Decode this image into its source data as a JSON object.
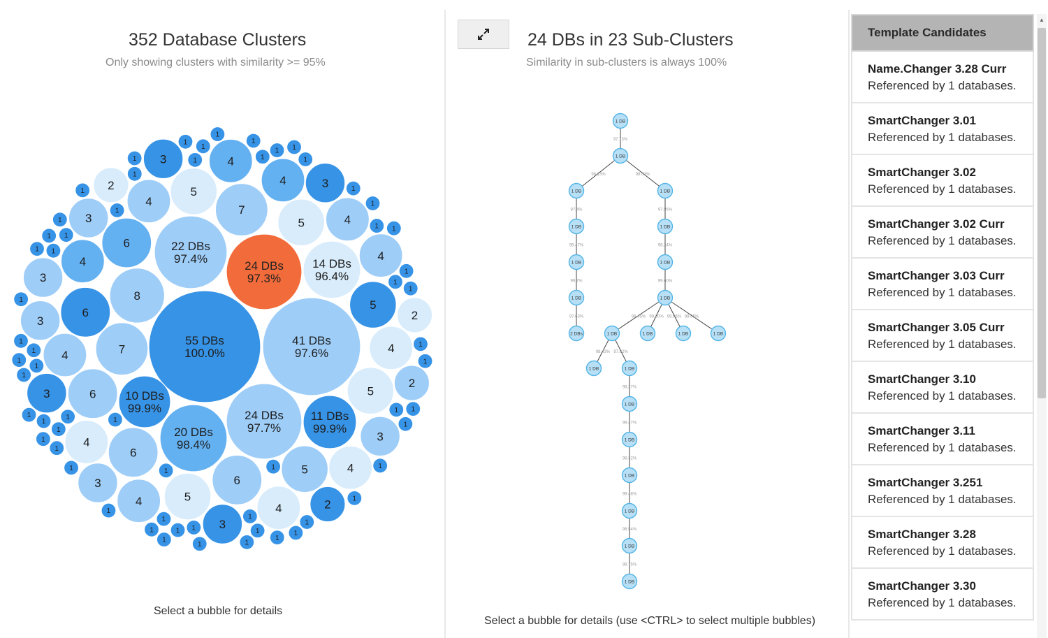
{
  "left_panel": {
    "title": "352 Database Clusters",
    "subtitle": "Only showing clusters with similarity >= 95%",
    "footer": "Select a bubble for details"
  },
  "mid_panel": {
    "expand_icon": "expand-arrows-icon",
    "title": "24 DBs in 23 Sub-Clusters",
    "subtitle": "Similarity in sub-clusters is always 100%",
    "footer": "Select a bubble for details (use <CTRL> to select multiple bubbles)"
  },
  "templates": {
    "header": "Template Candidates",
    "items": [
      {
        "name": "Name.Changer 3.28 Curr",
        "ref": "Referenced by 1 databases."
      },
      {
        "name": "SmartChanger 3.01",
        "ref": "Referenced by 1 databases."
      },
      {
        "name": "SmartChanger 3.02",
        "ref": "Referenced by 1 databases."
      },
      {
        "name": "SmartChanger 3.02 Curr",
        "ref": "Referenced by 1 databases."
      },
      {
        "name": "SmartChanger 3.03 Curr",
        "ref": "Referenced by 1 databases."
      },
      {
        "name": "SmartChanger 3.05 Curr",
        "ref": "Referenced by 1 databases."
      },
      {
        "name": "SmartChanger 3.10",
        "ref": "Referenced by 1 databases."
      },
      {
        "name": "SmartChanger 3.11",
        "ref": "Referenced by 1 databases."
      },
      {
        "name": "SmartChanger 3.251",
        "ref": "Referenced by 1 databases."
      },
      {
        "name": "SmartChanger 3.28",
        "ref": "Referenced by 1 databases."
      },
      {
        "name": "SmartChanger 3.30",
        "ref": "Referenced by 1 databases."
      }
    ]
  },
  "colors": {
    "selected": "#f26b3a",
    "dark": "#3793e6",
    "medium": "#64b1f2",
    "light": "#9ecdf8",
    "pale": "#d8ecfc",
    "node_fill": "#b7e0f7",
    "node_stroke": "#52b4e6"
  },
  "major_clusters": [
    {
      "label": "55 DBs",
      "pct": "100.0%",
      "shade": "dark"
    },
    {
      "label": "41 DBs",
      "pct": "97.6%",
      "shade": "light"
    },
    {
      "label": "24 DBs",
      "pct": "97.3%",
      "shade": "selected"
    },
    {
      "label": "24 DBs",
      "pct": "97.7%",
      "shade": "light"
    },
    {
      "label": "22 DBs",
      "pct": "97.4%",
      "shade": "light"
    },
    {
      "label": "20 DBs",
      "pct": "98.4%",
      "shade": "medium"
    },
    {
      "label": "14 DBs",
      "pct": "96.4%",
      "shade": "pale"
    },
    {
      "label": "11 DBs",
      "pct": "99.9%",
      "shade": "dark"
    },
    {
      "label": "10 DBs",
      "pct": "99.9%",
      "shade": "dark"
    }
  ],
  "small_clusters": [
    {
      "count": "8",
      "shade": "light"
    },
    {
      "count": "7",
      "shade": "light"
    },
    {
      "count": "7",
      "shade": "light"
    },
    {
      "count": "6",
      "shade": "medium"
    },
    {
      "count": "6",
      "shade": "light"
    },
    {
      "count": "6",
      "shade": "light"
    },
    {
      "count": "6",
      "shade": "dark"
    },
    {
      "count": "6",
      "shade": "light"
    },
    {
      "count": "5",
      "shade": "pale"
    },
    {
      "count": "5",
      "shade": "light"
    },
    {
      "count": "5",
      "shade": "pale"
    },
    {
      "count": "5",
      "shade": "dark"
    },
    {
      "count": "5",
      "shade": "pale"
    },
    {
      "count": "5",
      "shade": "pale"
    },
    {
      "count": "4",
      "shade": "light"
    },
    {
      "count": "4",
      "shade": "light"
    },
    {
      "count": "4",
      "shade": "medium"
    },
    {
      "count": "4",
      "shade": "pale"
    },
    {
      "count": "4",
      "shade": "pale"
    },
    {
      "count": "4",
      "shade": "medium"
    },
    {
      "count": "4",
      "shade": "light"
    },
    {
      "count": "4",
      "shade": "pale"
    },
    {
      "count": "4",
      "shade": "light"
    },
    {
      "count": "4",
      "shade": "medium"
    },
    {
      "count": "4",
      "shade": "light"
    },
    {
      "count": "4",
      "shade": "pale"
    },
    {
      "count": "3",
      "shade": "light"
    },
    {
      "count": "3",
      "shade": "dark"
    },
    {
      "count": "3",
      "shade": "light"
    },
    {
      "count": "3",
      "shade": "dark"
    },
    {
      "count": "3",
      "shade": "light"
    },
    {
      "count": "3",
      "shade": "light"
    },
    {
      "count": "3",
      "shade": "dark"
    },
    {
      "count": "3",
      "shade": "light"
    },
    {
      "count": "3",
      "shade": "dark"
    },
    {
      "count": "3",
      "shade": "dark"
    },
    {
      "count": "3",
      "shade": "pale"
    },
    {
      "count": "3",
      "shade": "light"
    },
    {
      "count": "3",
      "shade": "light"
    },
    {
      "count": "3",
      "shade": "dark"
    },
    {
      "count": "3",
      "shade": "dark"
    },
    {
      "count": "3",
      "shade": "light"
    },
    {
      "count": "3",
      "shade": "pale"
    },
    {
      "count": "2",
      "shade": "pale"
    },
    {
      "count": "2",
      "shade": "pale"
    },
    {
      "count": "2",
      "shade": "light"
    },
    {
      "count": "2",
      "shade": "dark"
    },
    {
      "count": "2",
      "shade": "dark"
    },
    {
      "count": "2",
      "shade": "dark"
    },
    {
      "count": "2",
      "shade": "light"
    },
    {
      "count": "2",
      "shade": "dark"
    },
    {
      "count": "2",
      "shade": "dark"
    },
    {
      "count": "2",
      "shade": "light"
    },
    {
      "count": "2",
      "shade": "pale"
    },
    {
      "count": "2",
      "shade": "dark"
    },
    {
      "count": "2",
      "shade": "dark"
    },
    {
      "count": "2",
      "shade": "pale"
    },
    {
      "count": "2",
      "shade": "dark"
    },
    {
      "count": "2",
      "shade": "dark"
    },
    {
      "count": "2",
      "shade": "dark"
    },
    {
      "count": "2",
      "shade": "pale"
    },
    {
      "count": "2",
      "shade": "dark"
    },
    {
      "count": "2",
      "shade": "dark"
    },
    {
      "count": "2",
      "shade": "dark"
    },
    {
      "count": "2",
      "shade": "dark"
    },
    {
      "count": "2",
      "shade": "dark"
    },
    {
      "count": "2",
      "shade": "pale"
    },
    {
      "count": "2",
      "shade": "dark"
    },
    {
      "count": "2",
      "shade": "dark"
    },
    {
      "count": "2",
      "shade": "dark"
    },
    {
      "count": "2",
      "shade": "dark"
    },
    {
      "count": "2",
      "shade": "dark"
    },
    {
      "count": "2",
      "shade": "dark"
    },
    {
      "count": "2",
      "shade": "dark"
    },
    {
      "count": "2",
      "shade": "dark"
    },
    {
      "count": "2",
      "shade": "dark"
    },
    {
      "count": "2",
      "shade": "pale"
    },
    {
      "count": "2",
      "shade": "pale"
    },
    {
      "count": "2",
      "shade": "dark"
    },
    {
      "count": "2",
      "shade": "dark"
    },
    {
      "count": "2",
      "shade": "dark"
    }
  ],
  "singleton_label": "1",
  "tree": {
    "node_label": "1 DB",
    "leaf_label": "2 DBs",
    "edge_labels": [
      "97.73%",
      "98.13%",
      "98.03%",
      "97.4%",
      "97.85%",
      "99.47%",
      "98.24%",
      "99.7%",
      "99.60%",
      "97.63%",
      "98.45%",
      "99.30%",
      "99.05%",
      "99.05%",
      "98.43%",
      "97.82%",
      "98.27%",
      "99.47%",
      "98.32%",
      "99.48%",
      "98.54%",
      "99.75%"
    ]
  }
}
